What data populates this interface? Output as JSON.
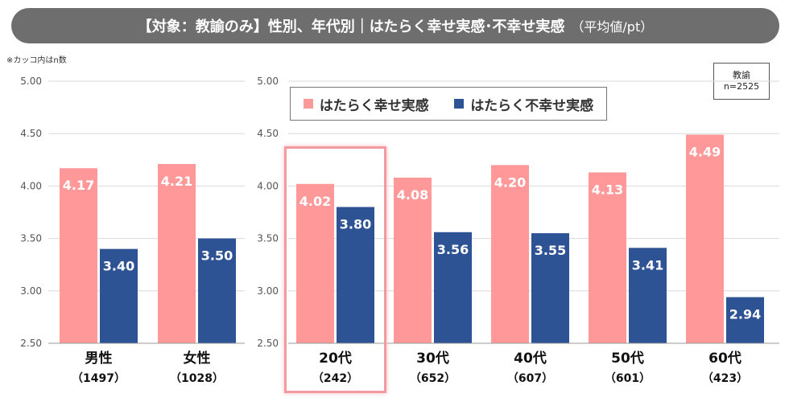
{
  "title": {
    "main": "【対象：教諭のみ】性別、年代別｜はたらく幸せ実感･不幸せ実感",
    "unit": "（平均値/pt）"
  },
  "note": "※カッコ内はn数",
  "sample_box": {
    "line1": "教諭",
    "line2": "n=2525"
  },
  "colors": {
    "happy": "#ff9999",
    "unhappy": "#2e5395",
    "title_bg": "#6e6e6e",
    "highlight": "#f29a9f"
  },
  "chart_data": [
    {
      "type": "bar",
      "title": "性別",
      "categories": [
        "男性",
        "女性"
      ],
      "category_n": [
        "（1497）",
        "（1028）"
      ],
      "series": [
        {
          "name": "はたらく幸せ実感",
          "values": [
            4.17,
            4.21
          ]
        },
        {
          "name": "はたらく不幸せ実感",
          "values": [
            3.4,
            3.5
          ]
        }
      ],
      "ylim": [
        2.5,
        5.0
      ],
      "yticks": [
        "5.00",
        "4.50",
        "4.00",
        "3.50",
        "3.00",
        "2.50"
      ]
    },
    {
      "type": "bar",
      "title": "年代別",
      "categories": [
        "20代",
        "30代",
        "40代",
        "50代",
        "60代"
      ],
      "category_n": [
        "（242）",
        "（652）",
        "（607）",
        "（601）",
        "（423）"
      ],
      "series": [
        {
          "name": "はたらく幸せ実感",
          "values": [
            4.02,
            4.08,
            4.2,
            4.13,
            4.49
          ]
        },
        {
          "name": "はたらく不幸せ実感",
          "values": [
            3.8,
            3.56,
            3.55,
            3.41,
            2.94
          ]
        }
      ],
      "ylim": [
        2.5,
        5.0
      ],
      "yticks": [
        "5.00",
        "4.50",
        "4.00",
        "3.50",
        "3.00",
        "2.50"
      ],
      "legend": [
        "はたらく幸せ実感",
        "はたらく不幸せ実感"
      ],
      "highlighted_category": "20代"
    }
  ]
}
